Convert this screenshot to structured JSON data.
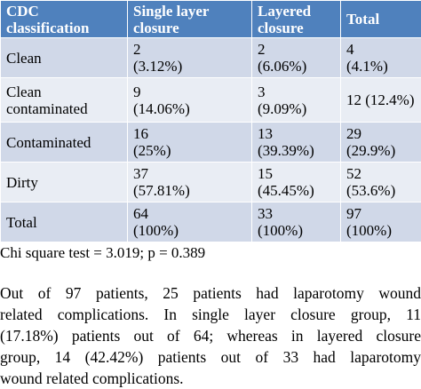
{
  "table": {
    "header": [
      [
        "CDC",
        "classification"
      ],
      [
        "Single layer",
        "closure"
      ],
      [
        "Layered",
        "closure"
      ],
      [
        "Total"
      ]
    ],
    "rows": [
      [
        [
          "Clean"
        ],
        [
          "2",
          "(3.12%)"
        ],
        [
          "2",
          "(6.06%)"
        ],
        [
          "4",
          "(4.1%)"
        ]
      ],
      [
        [
          "Clean",
          "contaminated"
        ],
        [
          "9",
          "(14.06%)"
        ],
        [
          "3",
          "(9.09%)"
        ],
        [
          "12 (12.4%)"
        ]
      ],
      [
        [
          "Contaminated"
        ],
        [
          "16",
          "(25%)"
        ],
        [
          "13",
          "(39.39%)"
        ],
        [
          "29",
          "(29.9%)"
        ]
      ],
      [
        [
          "Dirty"
        ],
        [
          "37",
          "(57.81%)"
        ],
        [
          "15",
          "(45.45%)"
        ],
        [
          "52",
          "(53.6%)"
        ]
      ],
      [
        [
          "Total"
        ],
        [
          "64",
          "(100%)"
        ],
        [
          "33",
          "(100%)"
        ],
        [
          "97",
          "(100%)"
        ]
      ]
    ]
  },
  "footnote": "Chi square test = 3.019; p = 0.389",
  "paragraph": [
    "Out of 97 patients, 25 patients had laparotomy wound",
    "related complications. In single layer closure group, 11",
    "(17.18%) patients out of 64; whereas in layered closure",
    "group, 14 (42.42%) patients out of 33 had laparotomy",
    "wound related complications."
  ]
}
